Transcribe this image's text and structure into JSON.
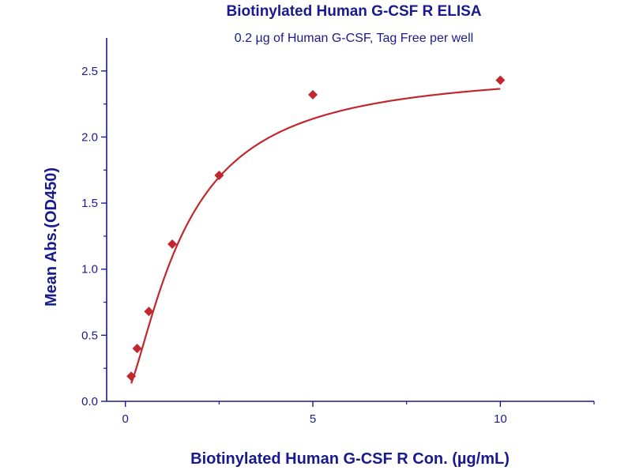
{
  "colors": {
    "text": "#1a1a8c",
    "axis": "#1a1a8c",
    "curve": "#c0282d",
    "marker": "#c0282d"
  },
  "chart_data": {
    "type": "scatter",
    "title": "Biotinylated Human G-CSF R ELISA",
    "subtitle": "0.2 µg of Human G-CSF, Tag Free per well",
    "xlabel": "Biotinylated Human G-CSF R Con. (µg/mL)",
    "ylabel": "Mean Abs.(OD450)",
    "xlim": [
      -0.5,
      12.5
    ],
    "ylim": [
      0,
      2.75
    ],
    "x_ticks": [
      0,
      5,
      10
    ],
    "x_tick_labels": [
      "0",
      "5",
      "10"
    ],
    "x_minor_ticks": [
      2.5,
      7.5,
      12.5
    ],
    "y_ticks": [
      0,
      0.5,
      1.0,
      1.5,
      2.0,
      2.5
    ],
    "y_tick_labels": [
      "0.0",
      "0.5",
      "1.0",
      "1.5",
      "2.0",
      "2.5"
    ],
    "y_minor_ticks": [
      0.25,
      0.75,
      1.25,
      1.75,
      2.25
    ],
    "grid": false,
    "marker": "diamond",
    "series": [
      {
        "x": [
          0.156,
          0.3125,
          0.625,
          1.25,
          2.5,
          5,
          10
        ],
        "y": [
          0.19,
          0.4,
          0.68,
          1.19,
          1.71,
          2.32,
          2.43
        ]
      }
    ],
    "fit_curve": {
      "type": "4PL",
      "bottom": 0.05,
      "top": 2.52,
      "ec50": 1.55,
      "hill": 1.45
    }
  }
}
